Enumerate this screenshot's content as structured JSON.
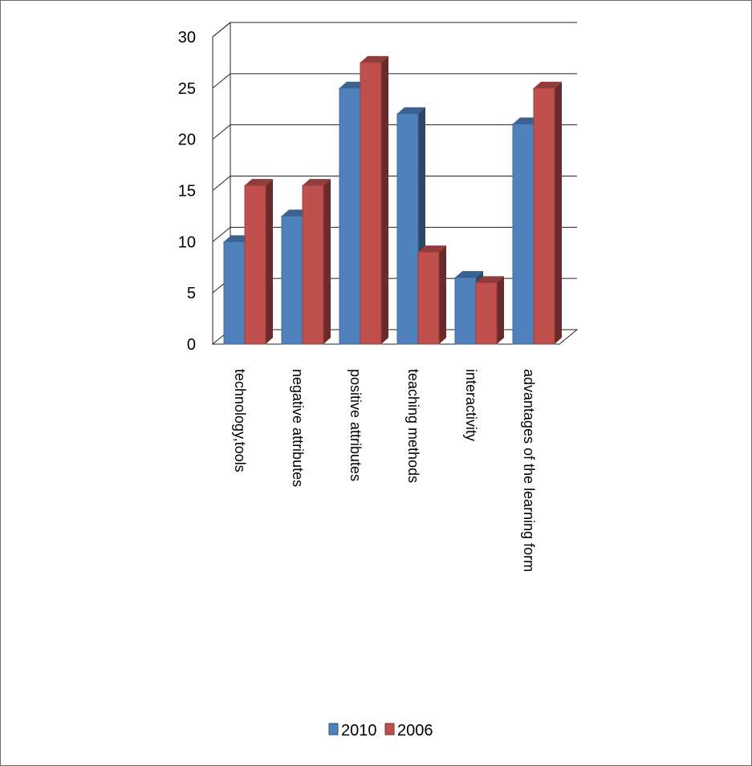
{
  "chart_data": {
    "type": "bar",
    "categories": [
      "technology,tools",
      "negative attributes",
      "positive attributes",
      "teaching methods",
      "interactivity",
      "advantages of the learning form"
    ],
    "series": [
      {
        "name": "2010",
        "values": [
          10,
          12.5,
          25,
          22.5,
          6.5,
          21.5
        ],
        "color": "#4f81bd"
      },
      {
        "name": "2006",
        "values": [
          15.5,
          15.5,
          27.5,
          9,
          6,
          25
        ],
        "color": "#c0504d"
      }
    ],
    "ylim": [
      0,
      30
    ],
    "yticks": [
      0,
      5,
      10,
      15,
      20,
      25,
      30
    ],
    "grid": true,
    "legend_position": "bottom",
    "style": "3d-clustered-column",
    "title": "",
    "xlabel": "",
    "ylabel": ""
  }
}
